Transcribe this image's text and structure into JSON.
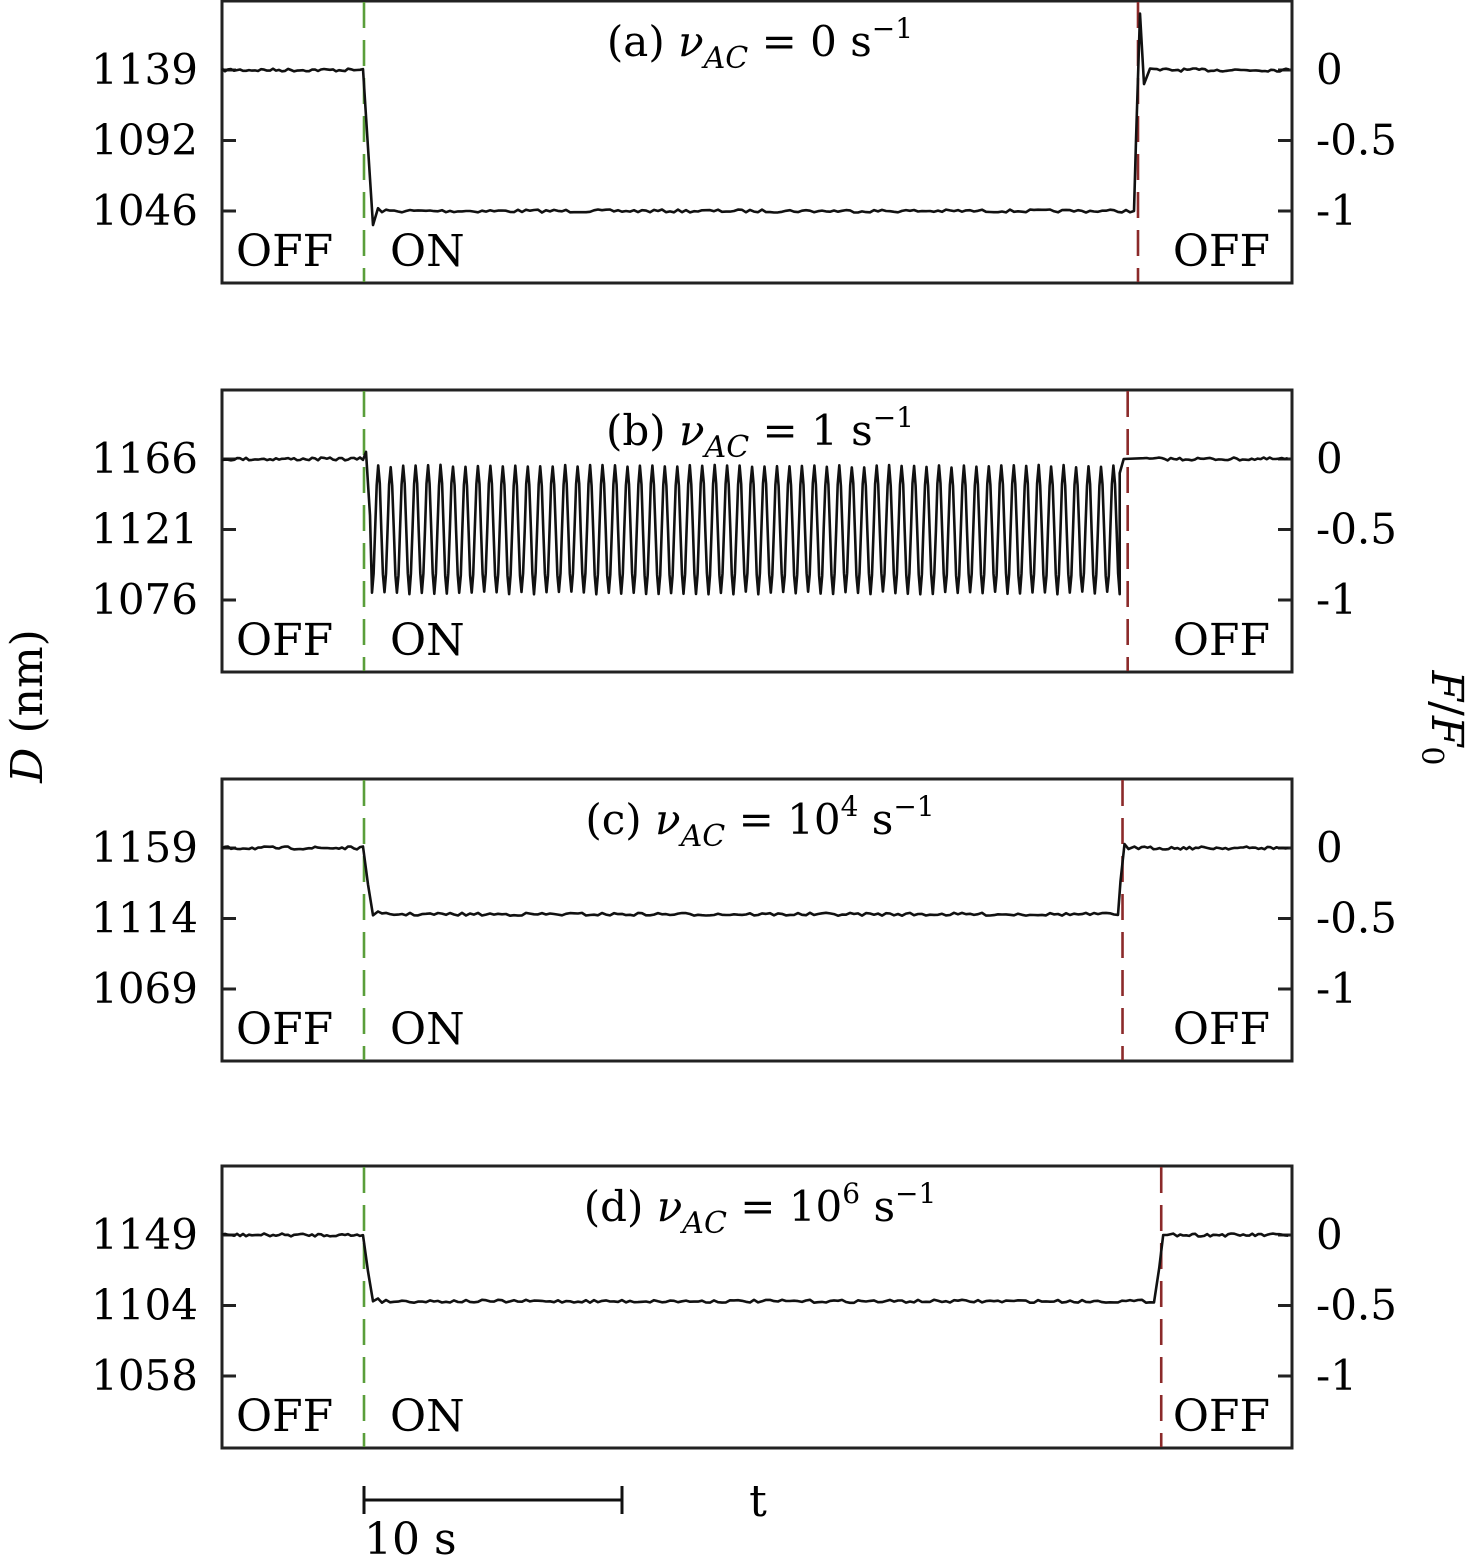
{
  "chart_data": [
    {
      "type": "line",
      "panel": "a",
      "title_prefix": "(a) ",
      "title_symbol": "ν",
      "title_subscript": "AC",
      "title_equals": " = ",
      "title_value": "0",
      "title_exponent": "",
      "title_unit": " s",
      "title_unit_exponent": "−1",
      "left_yticks": [
        "1139",
        "1092",
        "1046"
      ],
      "right_yticks": [
        "0",
        "-0.5",
        "-1"
      ],
      "labels": {
        "off_left": "OFF",
        "on": "ON",
        "off_right": "OFF"
      },
      "field_on_time_s": 0,
      "field_off_time_s": 30.0,
      "series": [
        {
          "values_F_over_F0": {
            "before_on": 0,
            "during_on": -1,
            "after_off": 0
          },
          "overshoot_on_off": 1
        }
      ]
    },
    {
      "type": "line",
      "panel": "b",
      "title_prefix": "(b) ",
      "title_symbol": "ν",
      "title_subscript": "AC",
      "title_equals": " = ",
      "title_value": "1",
      "title_exponent": "",
      "title_unit": " s",
      "title_unit_exponent": "−1",
      "left_yticks": [
        "1166",
        "1121",
        "1076"
      ],
      "right_yticks": [
        "0",
        "-0.5",
        "-1"
      ],
      "labels": {
        "off_left": "OFF",
        "on": "ON",
        "off_right": "OFF"
      },
      "field_on_time_s": 0,
      "field_off_time_s": 29.6,
      "series": [
        {
          "values_F_over_F0": {
            "before_on": 0,
            "oscillation_max": -0.05,
            "oscillation_min": -0.95,
            "after_off": 0
          },
          "oscillation_cycles": 60
        }
      ]
    },
    {
      "type": "line",
      "panel": "c",
      "title_prefix": "(c) ",
      "title_symbol": "ν",
      "title_subscript": "AC",
      "title_equals": " = ",
      "title_value": "10",
      "title_exponent": "4",
      "title_unit": " s",
      "title_unit_exponent": "−1",
      "left_yticks": [
        "1159",
        "1114",
        "1069"
      ],
      "right_yticks": [
        "0",
        "-0.5",
        "-1"
      ],
      "labels": {
        "off_left": "OFF",
        "on": "ON",
        "off_right": "OFF"
      },
      "field_on_time_s": 0,
      "field_off_time_s": 29.4,
      "series": [
        {
          "values_F_over_F0": {
            "before_on": 0,
            "during_on": -0.47,
            "after_off": 0
          },
          "overshoot_on_off": 0.07
        }
      ]
    },
    {
      "type": "line",
      "panel": "d",
      "title_prefix": "(d) ",
      "title_symbol": "ν",
      "title_subscript": "AC",
      "title_equals": " = ",
      "title_value": "10",
      "title_exponent": "6",
      "title_unit": " s",
      "title_unit_exponent": "−1",
      "left_yticks": [
        "1149",
        "1104",
        "1058"
      ],
      "right_yticks": [
        "0",
        "-0.5",
        "-1"
      ],
      "labels": {
        "off_left": "OFF",
        "on": "ON",
        "off_right": "OFF"
      },
      "field_on_time_s": 0,
      "field_off_time_s": 30.9,
      "series": [
        {
          "values_F_over_F0": {
            "before_on": 0,
            "during_on": -0.47,
            "after_off": 0
          },
          "overshoot_on_off": 0
        }
      ]
    }
  ],
  "shared": {
    "left_axis_label_italic": "D",
    "left_axis_label_rest": " (nm)",
    "right_axis_label_num": "F",
    "right_axis_label_slash": "/",
    "right_axis_label_den": "F",
    "right_axis_label_den_sub": "0",
    "xlabel": "t",
    "scalebar_label": "10 s",
    "scalebar_seconds": 10,
    "colors": {
      "field_on_marker": "#5a9e3a",
      "field_off_marker": "#8b2a2a",
      "trace": "#111111"
    }
  }
}
